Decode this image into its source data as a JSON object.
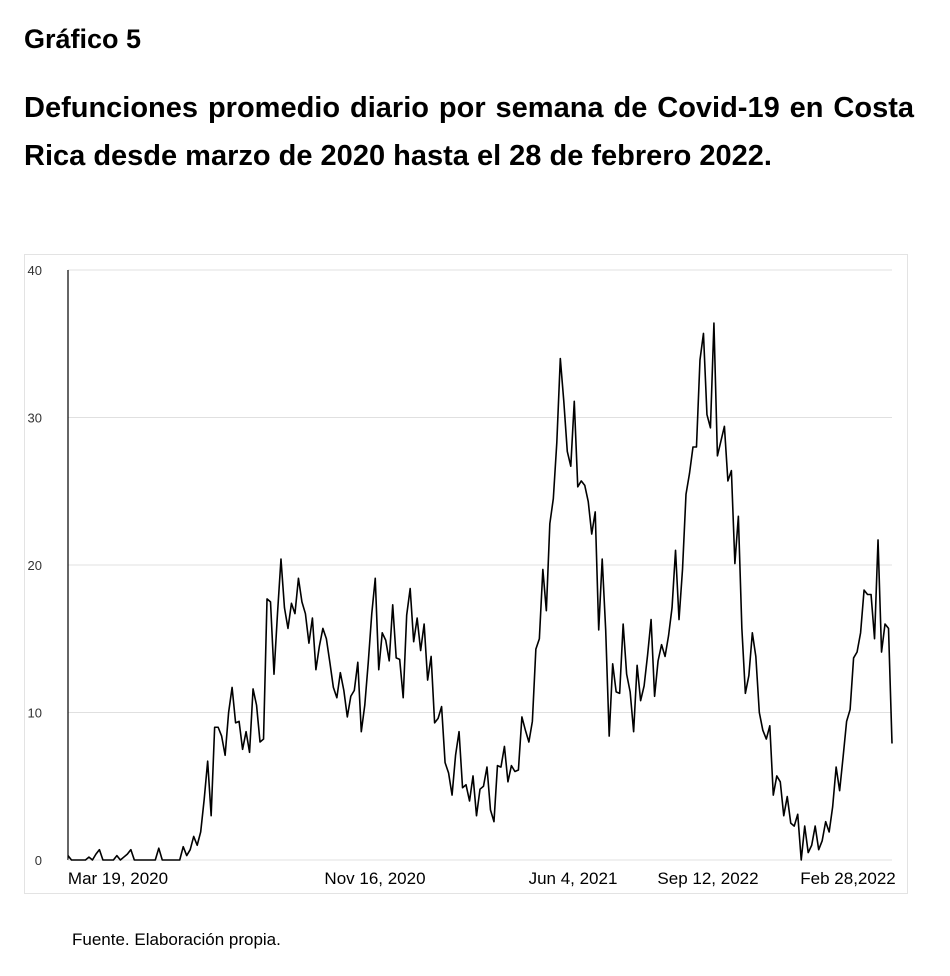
{
  "figure_label": "Gráfico 5",
  "title": "Defunciones    promedio diario por semana de Covid-19 en Costa Rica desde marzo de 2020 hasta el 28 de febrero 2022.",
  "source": "Fuente. Elaboración propia.",
  "colors": {
    "line": "#000000",
    "grid": "#e0e0e0",
    "axis": "#000000",
    "tick_text": "#333333"
  },
  "chart_data": {
    "type": "line",
    "title": "",
    "xlabel": "",
    "ylabel": "",
    "ylim": [
      0,
      40
    ],
    "yticks": [
      0,
      10,
      20,
      30,
      40
    ],
    "grid": true,
    "x_tick_labels": [
      "Mar 19, 2020",
      "Nov 16, 2020",
      "Jun 4, 2021",
      "Sep 12, 2022",
      "Feb 28,2022"
    ],
    "series": [
      {
        "values": [
          0.3,
          0,
          0,
          0,
          0,
          0,
          0.2,
          0,
          0.4,
          0.7,
          0,
          0,
          0,
          0,
          0.3,
          0,
          0.2,
          0.4,
          0.7,
          0,
          0,
          0,
          0,
          0,
          0,
          0,
          0.8,
          0,
          0,
          0,
          0,
          0,
          0,
          0.9,
          0.3,
          0.7,
          1.6,
          1,
          1.9,
          4.1,
          6.7,
          3,
          9,
          9,
          8.4,
          7.1,
          10,
          11.7,
          9.3,
          9.4,
          7.5,
          8.7,
          7.3,
          11.6,
          10.5,
          8,
          8.2,
          17.7,
          17.5,
          12.6,
          16.7,
          20.4,
          17.1,
          15.7,
          17.4,
          16.7,
          19.1,
          17.5,
          16.7,
          14.7,
          16.4,
          12.9,
          14.5,
          15.7,
          15,
          13.4,
          11.7,
          11,
          12.7,
          11.5,
          9.7,
          11.1,
          11.5,
          13.4,
          8.7,
          10.5,
          13.4,
          16.7,
          19.1,
          12.9,
          15.4,
          14.9,
          13.5,
          17.3,
          13.7,
          13.6,
          11,
          16.6,
          18.4,
          14.8,
          16.4,
          14.2,
          16,
          12.2,
          13.8,
          9.3,
          9.6,
          10.4,
          6.6,
          5.9,
          4.4,
          7.1,
          8.7,
          4.9,
          5.1,
          4,
          5.7,
          3,
          4.8,
          5,
          6.3,
          3.4,
          2.6,
          6.4,
          6.3,
          7.7,
          5.3,
          6.4,
          6,
          6.1,
          9.7,
          8.8,
          8,
          9.4,
          14.3,
          15,
          19.7,
          16.9,
          22.8,
          24.5,
          28.3,
          34,
          31.1,
          27.7,
          26.7,
          31.1,
          25.3,
          25.7,
          25.4,
          24.3,
          22.1,
          23.6,
          15.6,
          20.4,
          15.6,
          8.4,
          13.3,
          11.4,
          11.3,
          16,
          12.6,
          11.4,
          8.7,
          13.2,
          10.8,
          11.8,
          13.9,
          16.3,
          11.1,
          13.5,
          14.6,
          13.8,
          15.2,
          17.1,
          21,
          16.3,
          19.7,
          24.8,
          26.2,
          28,
          28,
          33.9,
          35.7,
          30.2,
          29.3,
          36.4,
          27.4,
          28.4,
          29.4,
          25.7,
          26.4,
          20.1,
          23.3,
          15.7,
          11.3,
          12.5,
          15.4,
          13.8,
          10,
          8.8,
          8.2,
          9.1,
          4.4,
          5.7,
          5.3,
          3,
          4.3,
          2.5,
          2.3,
          3.1,
          0,
          2.3,
          0.5,
          1,
          2.3,
          0.7,
          1.3,
          2.6,
          1.9,
          3.6,
          6.3,
          4.7,
          7,
          9.4,
          10.2,
          13.7,
          14.1,
          15.4,
          18.3,
          18,
          18,
          15,
          21.7,
          14.1,
          16,
          15.7,
          7.9
        ]
      }
    ]
  }
}
